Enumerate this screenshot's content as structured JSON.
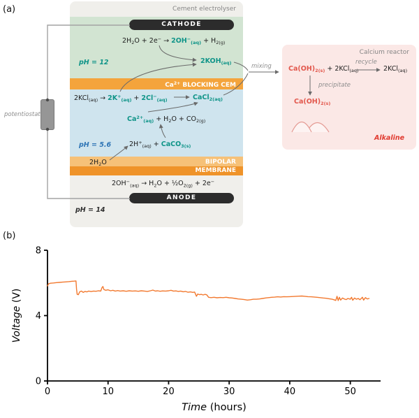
{
  "panels": {
    "a_label": "(a)",
    "b_label": "(b)"
  },
  "electrolyser": {
    "title": "Cement electrolyser",
    "cathode": "CATHODE",
    "anode": "ANODE",
    "cathode_reaction": {
      "pre": "2H_{2}O + 2e^{−} → ",
      "hl": "2OH^{−}_{(aq)}",
      "post": " + H_{2(g)}"
    },
    "ph_cathode": "pH = 12",
    "koh": "2KOH_{(aq)}",
    "cem_label": "Ca^{2+} BLOCKING CEM",
    "kcl_line": {
      "pre": "2KCl_{(aq)} → ",
      "k": "2K^{+}_{(aq)}",
      "plus": " + ",
      "cl": "2Cl^{−}_{(aq)}"
    },
    "cacl2": "CaCl_{2(aq)}",
    "ca_line": {
      "hl": "Ca^{2+}_{(aq)}",
      "post": " + H_{2}O + CO_{2(g)}"
    },
    "ph_middle": "pH = 5.6",
    "caco3_line": {
      "pre": "2H^{+}_{(aq)} + ",
      "hl": "CaCO_{3(s)}"
    },
    "h2o": "2H_{2}O",
    "bipolar_label": "BIPOLAR MEMBRANE",
    "anode_reaction": "2OH^{−}_{(aq)} → H_{2}O + ½O_{2(g)} + 2e^{−}",
    "ph_anode": "pH = 14"
  },
  "potentiostat_label": "potentiostat",
  "mixing_label": "mixing",
  "reactor": {
    "title": "Calcium reactor",
    "reaction_hl": "Ca(OH)_{2(s)}",
    "reaction_rest": " + 2KCl_{(aq)}",
    "recycle_label": "recycle",
    "kcl_product": "2KCl_{(aq)}",
    "precipitate_label": "precipitate",
    "precipitate_formula": "Ca(OH)_{2(s)}",
    "alkaline_label": "Alkaline"
  },
  "colors": {
    "teal": "#0f9488",
    "membrane_orange": "#f4a43c",
    "membrane_orange_light": "#f6c178",
    "membrane_orange_dark": "#ef9329",
    "green_region": "#d2e4d2",
    "blue_region": "#cfe4ee",
    "electrolyser_bg": "#f0efeb",
    "reactor_bg": "#fbe8e6",
    "ph_acid_blue": "#2e74b5",
    "red_product": "#e2574c",
    "alkaline_red": "#e03a2f",
    "electrode_black": "#2c2c2c",
    "wire_gray": "#a3a3a3",
    "chart_line": "#f2792f"
  },
  "chart_data": {
    "type": "line",
    "title": "",
    "xlabel": "Time (hours)",
    "ylabel": "Voltage (V)",
    "xlabel_italic": "Time",
    "xlabel_unit": " (hours)",
    "ylabel_italic": "Voltage",
    "ylabel_unit": " (V)",
    "xlim": [
      0,
      55
    ],
    "ylim": [
      0,
      8
    ],
    "xticks": [
      0,
      10,
      20,
      30,
      40,
      50
    ],
    "yticks": [
      0,
      4,
      8
    ],
    "grid": false,
    "legend": false,
    "line_color": "#f2792f",
    "series": [
      {
        "points": [
          [
            0,
            5.82
          ],
          [
            0.2,
            5.95
          ],
          [
            0.5,
            5.98
          ],
          [
            1,
            6.0
          ],
          [
            1.5,
            6.02
          ],
          [
            2,
            6.03
          ],
          [
            2.5,
            6.05
          ],
          [
            3,
            6.06
          ],
          [
            3.5,
            6.08
          ],
          [
            4,
            6.1
          ],
          [
            4.4,
            6.11
          ],
          [
            4.7,
            6.12
          ],
          [
            4.8,
            5.62
          ],
          [
            4.9,
            5.3
          ],
          [
            5.1,
            5.28
          ],
          [
            5.3,
            5.45
          ],
          [
            5.6,
            5.5
          ],
          [
            5.9,
            5.42
          ],
          [
            6.2,
            5.48
          ],
          [
            6.5,
            5.45
          ],
          [
            6.8,
            5.5
          ],
          [
            7.2,
            5.47
          ],
          [
            7.6,
            5.5
          ],
          [
            8,
            5.49
          ],
          [
            8.4,
            5.52
          ],
          [
            8.8,
            5.5
          ],
          [
            9,
            5.72
          ],
          [
            9.15,
            5.78
          ],
          [
            9.3,
            5.6
          ],
          [
            9.6,
            5.55
          ],
          [
            10,
            5.58
          ],
          [
            10.4,
            5.52
          ],
          [
            10.8,
            5.55
          ],
          [
            11.2,
            5.5
          ],
          [
            11.6,
            5.53
          ],
          [
            12,
            5.5
          ],
          [
            12.5,
            5.52
          ],
          [
            13,
            5.49
          ],
          [
            13.5,
            5.52
          ],
          [
            14,
            5.5
          ],
          [
            14.5,
            5.51
          ],
          [
            15,
            5.49
          ],
          [
            15.5,
            5.52
          ],
          [
            16,
            5.5
          ],
          [
            16.5,
            5.48
          ],
          [
            17,
            5.52
          ],
          [
            17.4,
            5.56
          ],
          [
            17.8,
            5.5
          ],
          [
            18.2,
            5.52
          ],
          [
            18.6,
            5.49
          ],
          [
            19,
            5.51
          ],
          [
            19.5,
            5.5
          ],
          [
            20,
            5.52
          ],
          [
            20.4,
            5.55
          ],
          [
            20.8,
            5.5
          ],
          [
            21.2,
            5.51
          ],
          [
            21.6,
            5.48
          ],
          [
            22,
            5.5
          ],
          [
            22.4,
            5.46
          ],
          [
            22.8,
            5.48
          ],
          [
            23.2,
            5.43
          ],
          [
            23.6,
            5.45
          ],
          [
            24,
            5.42
          ],
          [
            24.3,
            5.44
          ],
          [
            24.6,
            5.18
          ],
          [
            24.8,
            5.32
          ],
          [
            25.1,
            5.28
          ],
          [
            25.4,
            5.3
          ],
          [
            25.7,
            5.26
          ],
          [
            26,
            5.3
          ],
          [
            26.3,
            5.27
          ],
          [
            26.6,
            5.12
          ],
          [
            27,
            5.1
          ],
          [
            27.5,
            5.12
          ],
          [
            28,
            5.09
          ],
          [
            28.5,
            5.11
          ],
          [
            29,
            5.1
          ],
          [
            29.5,
            5.12
          ],
          [
            30,
            5.09
          ],
          [
            30.5,
            5.08
          ],
          [
            31,
            5.05
          ],
          [
            31.5,
            5.02
          ],
          [
            32,
            5.0
          ],
          [
            32.5,
            4.98
          ],
          [
            33,
            4.95
          ],
          [
            33.5,
            4.97
          ],
          [
            34,
            5.0
          ],
          [
            34.5,
            5.0
          ],
          [
            35,
            5.02
          ],
          [
            35.5,
            5.05
          ],
          [
            36,
            5.08
          ],
          [
            36.5,
            5.1
          ],
          [
            37,
            5.12
          ],
          [
            37.5,
            5.13
          ],
          [
            38,
            5.15
          ],
          [
            38.5,
            5.14
          ],
          [
            39,
            5.16
          ],
          [
            39.5,
            5.15
          ],
          [
            40,
            5.16
          ],
          [
            40.5,
            5.17
          ],
          [
            41,
            5.18
          ],
          [
            41.5,
            5.19
          ],
          [
            42,
            5.2
          ],
          [
            42.5,
            5.18
          ],
          [
            43,
            5.16
          ],
          [
            43.5,
            5.15
          ],
          [
            44,
            5.14
          ],
          [
            44.5,
            5.12
          ],
          [
            45,
            5.1
          ],
          [
            45.5,
            5.08
          ],
          [
            46,
            5.06
          ],
          [
            46.5,
            5.03
          ],
          [
            47,
            5.0
          ],
          [
            47.3,
            4.97
          ],
          [
            47.6,
            4.93
          ],
          [
            47.8,
            5.18
          ],
          [
            48,
            4.92
          ],
          [
            48.2,
            5.12
          ],
          [
            48.4,
            4.95
          ],
          [
            48.7,
            5.08
          ],
          [
            49,
            5.02
          ],
          [
            49.3,
            4.98
          ],
          [
            49.6,
            5.05
          ],
          [
            50,
            5.0
          ],
          [
            50.2,
            5.12
          ],
          [
            50.4,
            4.94
          ],
          [
            50.7,
            5.08
          ],
          [
            51,
            5.0
          ],
          [
            51.3,
            5.05
          ],
          [
            51.6,
            4.97
          ],
          [
            52,
            5.12
          ],
          [
            52.2,
            4.95
          ],
          [
            52.5,
            5.1
          ],
          [
            52.8,
            5.02
          ],
          [
            53.1,
            5.05
          ]
        ]
      }
    ]
  }
}
